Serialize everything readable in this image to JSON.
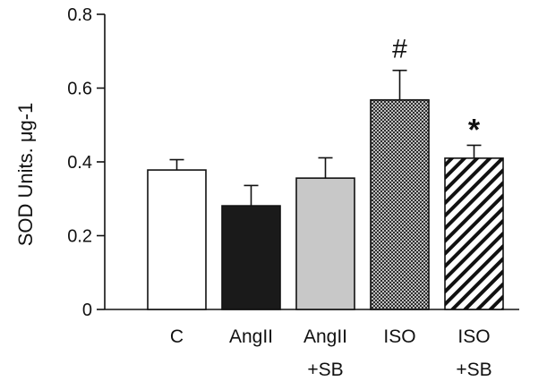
{
  "chart_data": {
    "type": "bar",
    "categories": [
      [
        "C"
      ],
      [
        "AngII"
      ],
      [
        "AngII",
        "+SB"
      ],
      [
        "ISO"
      ],
      [
        "ISO",
        "+SB"
      ]
    ],
    "values": [
      0.378,
      0.281,
      0.356,
      0.568,
      0.41
    ],
    "errors": [
      0.028,
      0.055,
      0.055,
      0.08,
      0.035
    ],
    "fills": [
      "white",
      "black",
      "lightgray",
      "crosshatch",
      "diagonal"
    ],
    "annotations": [
      "",
      "",
      "",
      "#",
      "*"
    ],
    "title": "",
    "xlabel": "",
    "ylabel": "SOD Units. μg-1",
    "ylim": [
      0,
      0.8
    ],
    "yticks": [
      0,
      0.2,
      0.4,
      0.6,
      0.8
    ],
    "ytick_labels": [
      "0",
      "0.2",
      "0.4",
      "0.6",
      "0.8"
    ],
    "grid": false,
    "legend": "none"
  }
}
